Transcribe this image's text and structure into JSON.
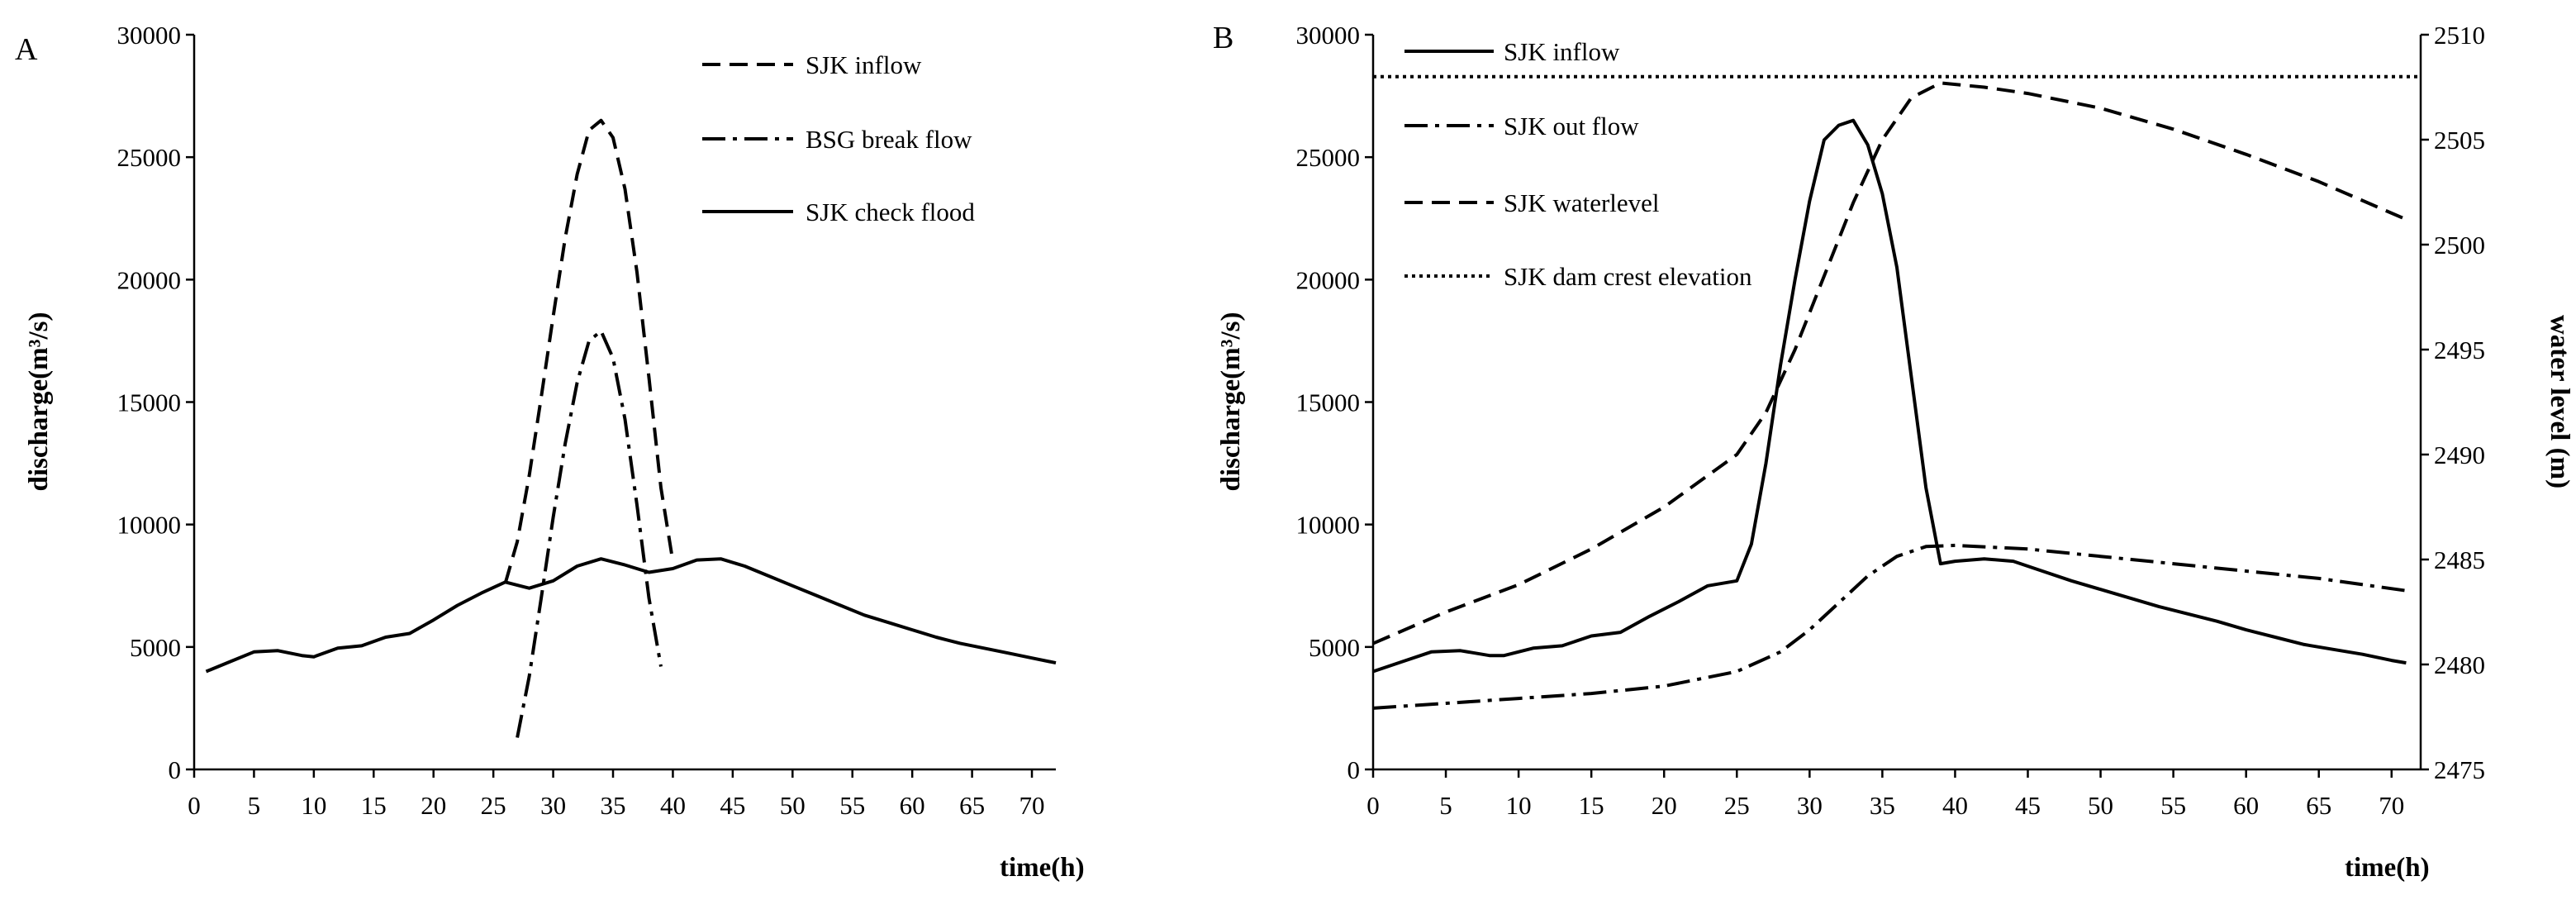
{
  "chart_data": [
    {
      "panel": "A",
      "type": "line",
      "title": "",
      "xlabel": "time(h)",
      "ylabel": "discharge(m³/s)",
      "xlim": [
        0,
        72
      ],
      "ylim": [
        0,
        30000
      ],
      "xticks": [
        0,
        5,
        10,
        15,
        20,
        25,
        30,
        35,
        40,
        45,
        50,
        55,
        60,
        65,
        70
      ],
      "yticks": [
        0,
        5000,
        10000,
        15000,
        20000,
        25000,
        30000
      ],
      "grid": false,
      "legend": "top-right",
      "series": [
        {
          "name": "SJK inflow",
          "style": "dashed",
          "x": [
            26,
            27,
            28,
            29,
            30,
            31,
            32,
            33,
            34,
            35,
            36,
            37,
            38,
            39,
            40
          ],
          "y": [
            7600,
            9300,
            12000,
            15200,
            18500,
            21700,
            24300,
            26100,
            26500,
            25800,
            23700,
            20300,
            16000,
            11500,
            8500
          ]
        },
        {
          "name": "BSG break flow",
          "style": "dashdot",
          "x": [
            27,
            28,
            29,
            30,
            31,
            32,
            33,
            34,
            35,
            36,
            37,
            38,
            39
          ],
          "y": [
            1300,
            3800,
            7000,
            10300,
            13300,
            15800,
            17500,
            17900,
            16800,
            14300,
            10800,
            7000,
            4200
          ]
        },
        {
          "name": "SJK check flood",
          "style": "solid",
          "x": [
            1,
            3,
            5,
            7,
            9,
            10,
            12,
            14,
            16,
            18,
            20,
            22,
            24,
            26,
            28,
            30,
            32,
            34,
            36,
            38,
            40,
            42,
            44,
            46,
            48,
            50,
            52,
            54,
            56,
            58,
            60,
            62,
            64,
            66,
            68,
            70,
            72
          ],
          "y": [
            4000,
            4400,
            4800,
            4850,
            4650,
            4600,
            4950,
            5050,
            5400,
            5550,
            6100,
            6700,
            7200,
            7650,
            7400,
            7700,
            8300,
            8600,
            8350,
            8050,
            8200,
            8550,
            8600,
            8300,
            7900,
            7500,
            7100,
            6700,
            6300,
            6000,
            5700,
            5400,
            5150,
            4950,
            4750,
            4550,
            4350
          ]
        }
      ]
    },
    {
      "panel": "B",
      "type": "line",
      "title": "",
      "xlabel": "time(h)",
      "ylabel": "discharge(m³/s)",
      "y2label": "water level (m)",
      "xlim": [
        0,
        72
      ],
      "ylim": [
        0,
        30000
      ],
      "y2lim": [
        2475,
        2510
      ],
      "xticks": [
        0,
        5,
        10,
        15,
        20,
        25,
        30,
        35,
        40,
        45,
        50,
        55,
        60,
        65,
        70
      ],
      "yticks": [
        0,
        5000,
        10000,
        15000,
        20000,
        25000,
        30000
      ],
      "y2ticks": [
        2475,
        2480,
        2485,
        2490,
        2495,
        2500,
        2505,
        2510
      ],
      "grid": false,
      "legend": "top-left",
      "series": [
        {
          "name": "SJK inflow",
          "style": "solid",
          "axis": "left",
          "x": [
            0,
            2,
            4,
            6,
            8,
            9,
            11,
            13,
            15,
            17,
            19,
            21,
            23,
            25,
            26,
            27,
            28,
            29,
            30,
            31,
            32,
            33,
            34,
            35,
            36,
            37,
            38,
            39,
            40,
            42,
            44,
            46,
            48,
            50,
            52,
            54,
            56,
            58,
            60,
            62,
            64,
            66,
            68,
            70,
            71
          ],
          "y": [
            4000,
            4400,
            4800,
            4850,
            4650,
            4650,
            4950,
            5050,
            5450,
            5600,
            6250,
            6850,
            7500,
            7700,
            9200,
            12500,
            16500,
            20000,
            23200,
            25700,
            26300,
            26500,
            25500,
            23500,
            20500,
            16000,
            11500,
            8400,
            8500,
            8600,
            8500,
            8100,
            7700,
            7350,
            7000,
            6650,
            6350,
            6050,
            5700,
            5400,
            5100,
            4900,
            4700,
            4450,
            4350
          ]
        },
        {
          "name": "SJK out flow",
          "style": "dashdot",
          "axis": "left",
          "x": [
            0,
            5,
            10,
            15,
            20,
            25,
            28,
            30,
            32,
            34,
            36,
            38,
            40,
            45,
            50,
            55,
            60,
            65,
            71
          ],
          "y": [
            2500,
            2700,
            2900,
            3100,
            3400,
            4000,
            4800,
            5700,
            6800,
            7900,
            8700,
            9100,
            9150,
            9000,
            8700,
            8400,
            8100,
            7800,
            7300
          ]
        },
        {
          "name": "SJK waterlevel",
          "style": "dashed",
          "axis": "right",
          "x": [
            0,
            5,
            10,
            15,
            20,
            25,
            27,
            29,
            31,
            33,
            35,
            37,
            39,
            42,
            45,
            50,
            55,
            60,
            65,
            71
          ],
          "y": [
            2481.0,
            2482.5,
            2483.8,
            2485.5,
            2487.5,
            2490.0,
            2492.0,
            2495.0,
            2498.5,
            2502.0,
            2505.0,
            2507.0,
            2507.7,
            2507.5,
            2507.2,
            2506.5,
            2505.5,
            2504.3,
            2503.0,
            2501.2
          ]
        },
        {
          "name": "SJK dam crest elevation",
          "style": "dotted",
          "axis": "right",
          "x": [
            0,
            72
          ],
          "y": [
            2508,
            2508
          ]
        }
      ]
    }
  ]
}
